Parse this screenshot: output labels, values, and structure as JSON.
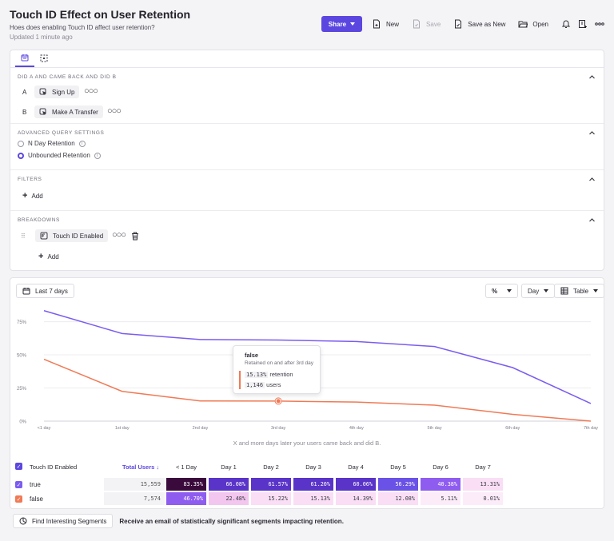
{
  "header": {
    "title": "Touch ID Effect on User Retention",
    "subtitle": "Hoes does enabling Touch ID affect user retention?",
    "updated": "Updated 1 minute ago",
    "share_label": "Share",
    "new_label": "New",
    "save_label": "Save",
    "save_as_new_label": "Save as New",
    "open_label": "Open"
  },
  "query": {
    "did_section_title": "DID A AND CAME BACK AND DID B",
    "event_a_letter": "A",
    "event_a": "Sign Up",
    "event_b_letter": "B",
    "event_b": "Make A Transfer",
    "advanced_title": "ADVANCED QUERY SETTINGS",
    "option_n_day": "N Day Retention",
    "option_unbounded": "Unbounded Retention",
    "selected_option": "Unbounded Retention",
    "filters_title": "FILTERS",
    "add_label": "Add",
    "breakdowns_title": "BREAKDOWNS",
    "breakdown_property": "Touch ID Enabled"
  },
  "chart_controls": {
    "date_range": "Last 7 days",
    "percent_symbol": "%",
    "interval": "Day",
    "view": "Table"
  },
  "chart_data": {
    "type": "line",
    "x": [
      "<1 day",
      "1st day",
      "2nd day",
      "3rd day",
      "4th day",
      "5th day",
      "6th day",
      "7th day"
    ],
    "y_ticks": [
      "0%",
      "25%",
      "50%",
      "75%"
    ],
    "ylim": [
      0,
      85
    ],
    "xlabel": "X and more days later your users came back and did B.",
    "series": [
      {
        "name": "true",
        "color": "#7b5cf0",
        "values": [
          83.35,
          66.08,
          61.57,
          61.2,
          60.06,
          56.29,
          40.38,
          13.31
        ]
      },
      {
        "name": "false",
        "color": "#f07a56",
        "values": [
          46.7,
          22.48,
          15.22,
          15.13,
          14.39,
          12.08,
          5.11,
          0.01
        ]
      }
    ],
    "highlight": {
      "series": "false",
      "index": 3
    }
  },
  "tooltip": {
    "title": "false",
    "subtitle": "Retained on and after 3rd day",
    "pct_value": "15.13%",
    "pct_label": "retention",
    "users_value": "1,146",
    "users_label": "users"
  },
  "table": {
    "header_label": "Touch ID Enabled",
    "total_header": "Total Users ↓",
    "columns": [
      "< 1 Day",
      "Day 1",
      "Day 2",
      "Day 3",
      "Day 4",
      "Day 5",
      "Day 6",
      "Day 7"
    ],
    "rows": [
      {
        "label": "true",
        "color": "#7b5cf0",
        "total": "15,559",
        "cells": [
          "83.35%",
          "66.08%",
          "61.57%",
          "61.20%",
          "60.06%",
          "56.29%",
          "40.38%",
          "13.31%"
        ]
      },
      {
        "label": "false",
        "color": "#f07a56",
        "total": "7,574",
        "cells": [
          "46.70%",
          "22.48%",
          "15.22%",
          "15.13%",
          "14.39%",
          "12.08%",
          "5.11%",
          "0.01%"
        ]
      }
    ]
  },
  "footer": {
    "button_label": "Find Interesting Segments",
    "text": "Receive an email of statistically significant segments impacting retention."
  }
}
